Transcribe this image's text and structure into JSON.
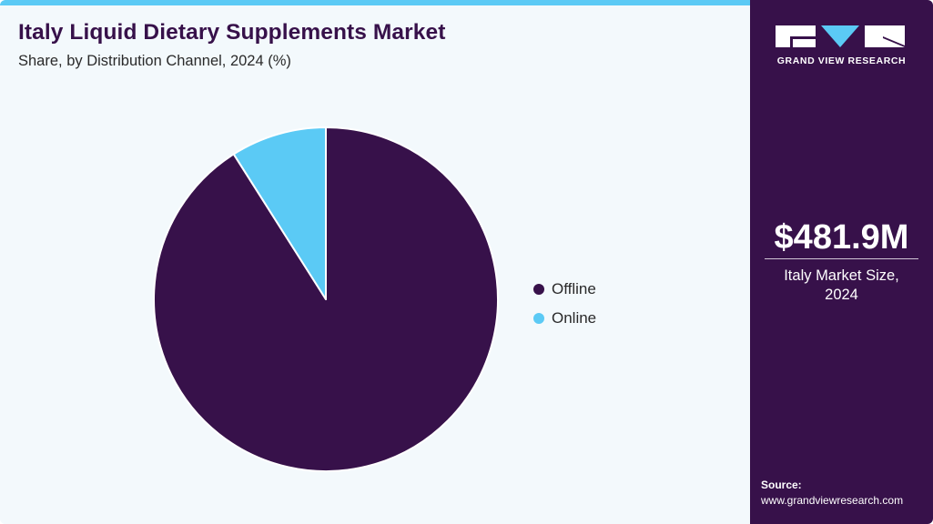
{
  "header": {
    "title": "Italy Liquid Dietary Supplements Market",
    "subtitle": "Share, by Distribution Channel, 2024 (%)"
  },
  "legend": {
    "items": [
      {
        "label": "Offline",
        "color": "#37114a"
      },
      {
        "label": "Online",
        "color": "#5bcaf5"
      }
    ]
  },
  "sidebar": {
    "brand": "GRAND VIEW RESEARCH",
    "market_value": "$481.9M",
    "market_label_line1": "Italy Market Size,",
    "market_label_line2": "2024",
    "source_label": "Source:",
    "source_url": "www.grandviewresearch.com"
  },
  "colors": {
    "primary": "#37114a",
    "accent": "#5bcaf5",
    "background": "#f3f9fc"
  },
  "chart_data": {
    "type": "pie",
    "title": "Italy Liquid Dietary Supplements Market",
    "subtitle": "Share, by Distribution Channel, 2024 (%)",
    "categories": [
      "Offline",
      "Online"
    ],
    "values": [
      91,
      9
    ],
    "colors": [
      "#37114a",
      "#5bcaf5"
    ],
    "start_angle": "12 o'clock, Online drawn counter-clockwise",
    "legend_position": "right"
  }
}
